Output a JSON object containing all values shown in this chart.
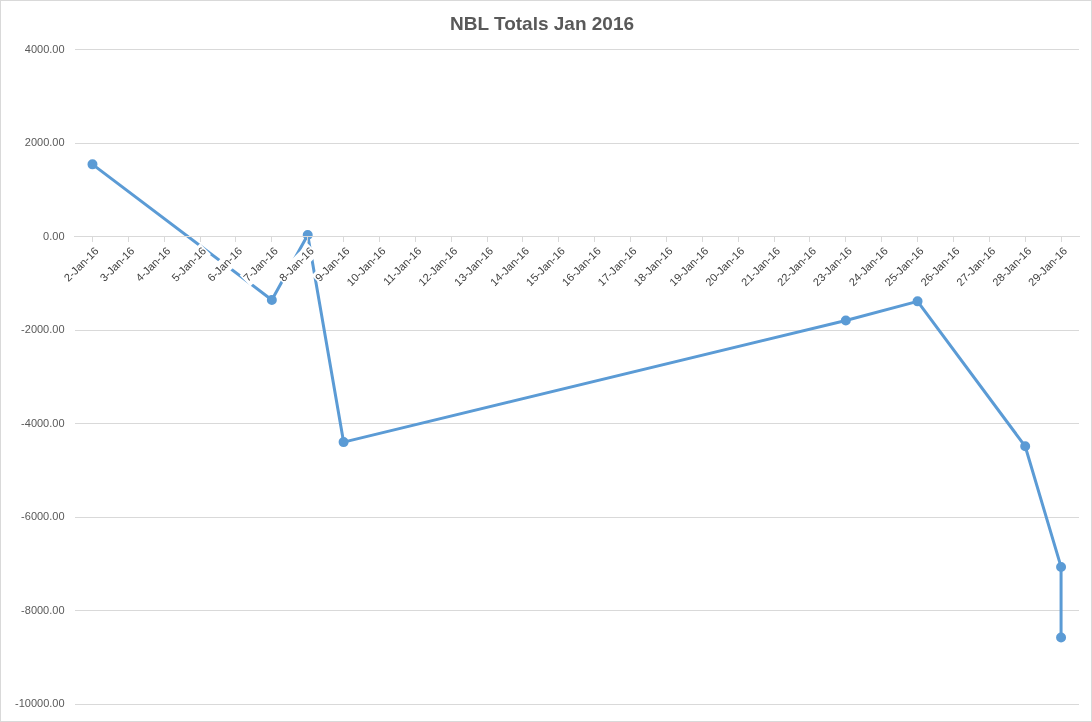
{
  "chart_data": {
    "type": "line",
    "title": "NBL Totals Jan 2016",
    "x": [
      "2016-01-02",
      "2016-01-07",
      "2016-01-08",
      "2016-01-09",
      "2016-01-23",
      "2016-01-25",
      "2016-01-28",
      "2016-01-29",
      "2016-01-29"
    ],
    "series": [
      {
        "color": "#5b9bd5",
        "values": [
          1550,
          -1350,
          40,
          -4390,
          -1790,
          -1380,
          -4480,
          -7060,
          -8570
        ]
      }
    ],
    "xlim": [
      "2016-01-01T12:00",
      "2016-01-29T12:00"
    ],
    "xticks": [
      {
        "value": "2016-01-02",
        "label": "2-Jan-16"
      },
      {
        "value": "2016-01-03",
        "label": "3-Jan-16"
      },
      {
        "value": "2016-01-04",
        "label": "4-Jan-16"
      },
      {
        "value": "2016-01-05",
        "label": "5-Jan-16"
      },
      {
        "value": "2016-01-06",
        "label": "6-Jan-16"
      },
      {
        "value": "2016-01-07",
        "label": "7-Jan-16"
      },
      {
        "value": "2016-01-08",
        "label": "8-Jan-16"
      },
      {
        "value": "2016-01-09",
        "label": "9-Jan-16"
      },
      {
        "value": "2016-01-10",
        "label": "10-Jan-16"
      },
      {
        "value": "2016-01-11",
        "label": "11-Jan-16"
      },
      {
        "value": "2016-01-12",
        "label": "12-Jan-16"
      },
      {
        "value": "2016-01-13",
        "label": "13-Jan-16"
      },
      {
        "value": "2016-01-14",
        "label": "14-Jan-16"
      },
      {
        "value": "2016-01-15",
        "label": "15-Jan-16"
      },
      {
        "value": "2016-01-16",
        "label": "16-Jan-16"
      },
      {
        "value": "2016-01-17",
        "label": "17-Jan-16"
      },
      {
        "value": "2016-01-18",
        "label": "18-Jan-16"
      },
      {
        "value": "2016-01-19",
        "label": "19-Jan-16"
      },
      {
        "value": "2016-01-20",
        "label": "20-Jan-16"
      },
      {
        "value": "2016-01-21",
        "label": "21-Jan-16"
      },
      {
        "value": "2016-01-22",
        "label": "22-Jan-16"
      },
      {
        "value": "2016-01-23",
        "label": "23-Jan-16"
      },
      {
        "value": "2016-01-24",
        "label": "24-Jan-16"
      },
      {
        "value": "2016-01-25",
        "label": "25-Jan-16"
      },
      {
        "value": "2016-01-26",
        "label": "26-Jan-16"
      },
      {
        "value": "2016-01-27",
        "label": "27-Jan-16"
      },
      {
        "value": "2016-01-28",
        "label": "28-Jan-16"
      },
      {
        "value": "2016-01-29",
        "label": "29-Jan-16"
      }
    ],
    "ylim": [
      -10000,
      4000
    ],
    "yticks": [
      {
        "value": -10000,
        "label": "-10000.00"
      },
      {
        "value": -8000,
        "label": "-8000.00"
      },
      {
        "value": -6000,
        "label": "-6000.00"
      },
      {
        "value": -4000,
        "label": "-4000.00"
      },
      {
        "value": -2000,
        "label": "-2000.00"
      },
      {
        "value": 0,
        "label": "0.00"
      },
      {
        "value": 2000,
        "label": "2000.00"
      },
      {
        "value": 4000,
        "label": "4000.00"
      }
    ],
    "grid": "y",
    "marker": "circle",
    "line_style": "solid"
  }
}
